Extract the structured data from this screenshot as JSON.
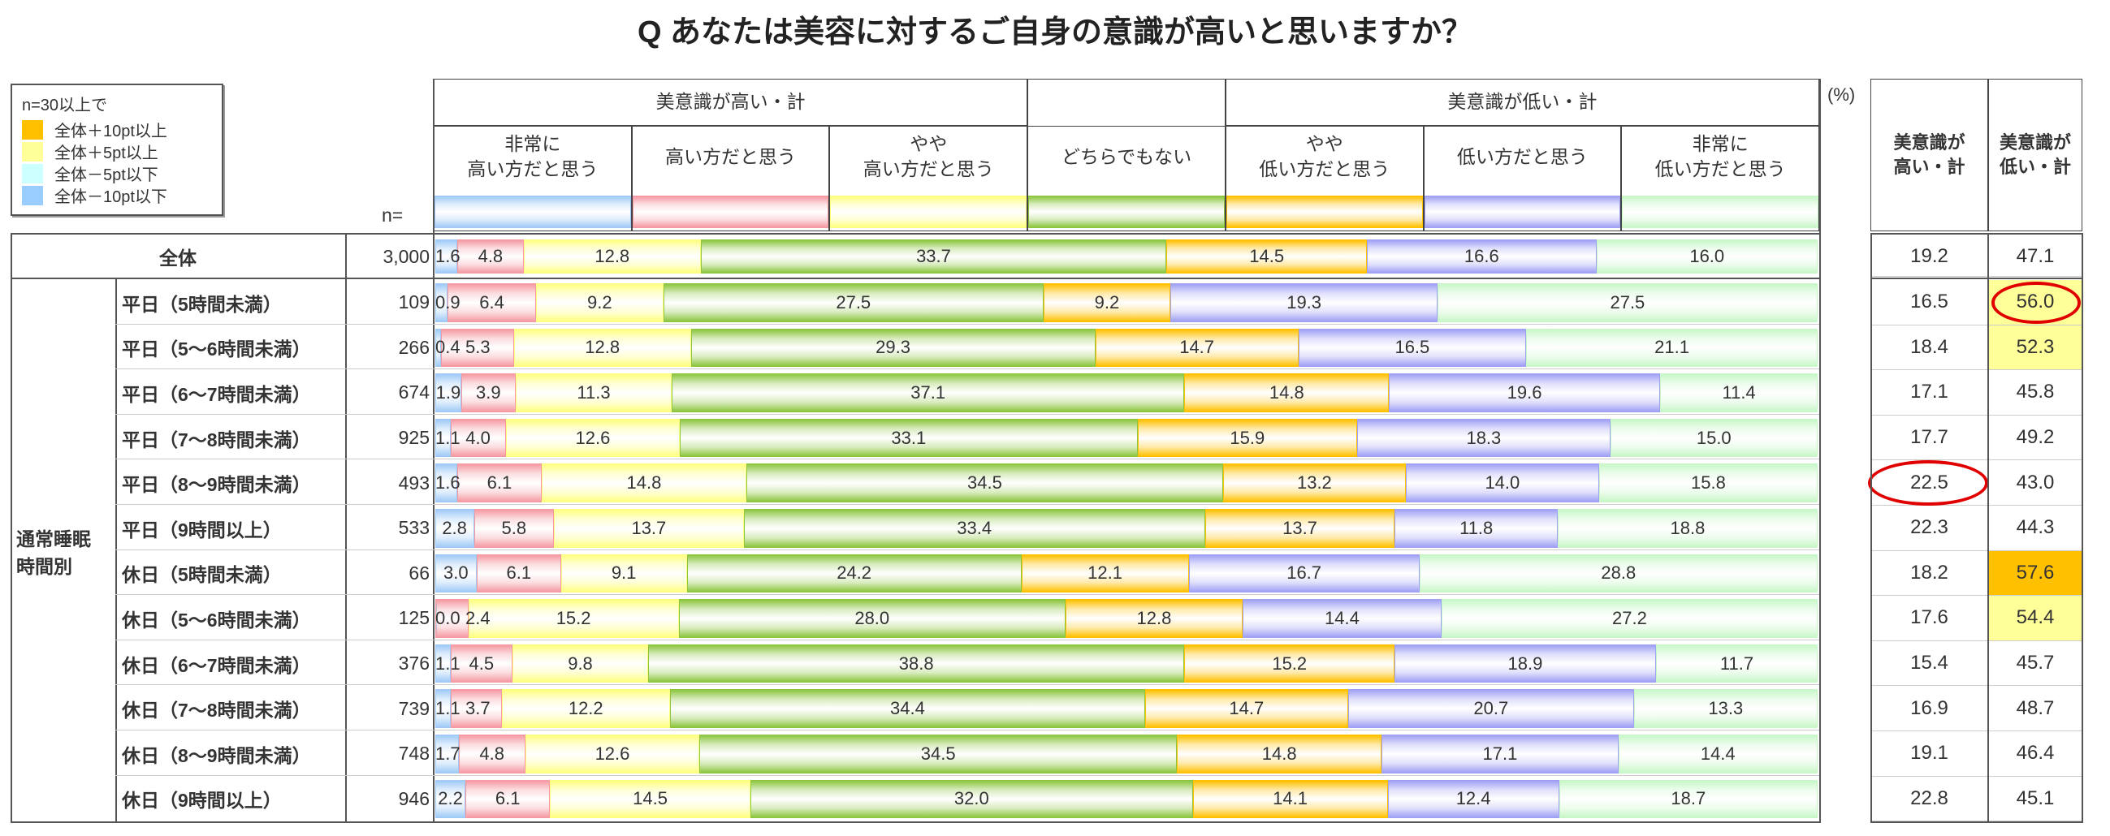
{
  "title": "Q あなたは美容に対するご自身の意識が高いと思いますか？",
  "legend": {
    "heading": "n=30以上で",
    "items": [
      {
        "label": "全体＋10pt以上",
        "color": "#ffc000"
      },
      {
        "label": "全体＋5pt以上",
        "color": "#ffff99"
      },
      {
        "label": "全体－5pt以下",
        "color": "#ccffff"
      },
      {
        "label": "全体－10pt以下",
        "color": "#99ccff"
      }
    ]
  },
  "n_label": "n=",
  "unit": "(%)",
  "group_headers": {
    "high": "美意識が高い・計",
    "low": "美意識が低い・計"
  },
  "total_headers": {
    "high": "美意識が\n高い・計",
    "low": "美意識が\n低い・計"
  },
  "side_group_label": {
    "line1": "通常睡眠",
    "line2": "時間別"
  },
  "chart_data": {
    "type": "bar",
    "orientation": "horizontal-stacked-100",
    "categories": [
      "非常に\n高い方だと思う",
      "高い方だと思う",
      "やや\n高い方だと思う",
      "どちらでもない",
      "やや\n低い方だと思う",
      "低い方だと思う",
      "非常に\n低い方だと思う"
    ],
    "category_colors": [
      "#9fcaf7",
      "#f59aa3",
      "#ffff80",
      "#8cc63f",
      "#ffc000",
      "#a0a0f5",
      "#c8f7c8"
    ],
    "rows": [
      {
        "label": "全体",
        "n": "3,000",
        "values": [
          1.6,
          4.8,
          12.8,
          33.7,
          14.5,
          16.6,
          16.0
        ],
        "high_total": "19.2",
        "low_total": "47.1",
        "low_highlight": "",
        "circle": ""
      },
      {
        "label": "平日（5時間未満）",
        "n": "109",
        "values": [
          0.9,
          6.4,
          9.2,
          27.5,
          9.2,
          19.3,
          27.5
        ],
        "high_total": "16.5",
        "low_total": "56.0",
        "low_highlight": "#ffff99",
        "circle": "low"
      },
      {
        "label": "平日（5～6時間未満）",
        "n": "266",
        "values": [
          0.4,
          5.3,
          12.8,
          29.3,
          14.7,
          16.5,
          21.1
        ],
        "high_total": "18.4",
        "low_total": "52.3",
        "low_highlight": "#ffff99",
        "circle": ""
      },
      {
        "label": "平日（6～7時間未満）",
        "n": "674",
        "values": [
          1.9,
          3.9,
          11.3,
          37.1,
          14.8,
          19.6,
          11.4
        ],
        "high_total": "17.1",
        "low_total": "45.8",
        "low_highlight": "",
        "circle": ""
      },
      {
        "label": "平日（7～8時間未満）",
        "n": "925",
        "values": [
          1.1,
          4.0,
          12.6,
          33.1,
          15.9,
          18.3,
          15.0
        ],
        "high_total": "17.7",
        "low_total": "49.2",
        "low_highlight": "",
        "circle": ""
      },
      {
        "label": "平日（8～9時間未満）",
        "n": "493",
        "values": [
          1.6,
          6.1,
          14.8,
          34.5,
          13.2,
          14.0,
          15.8
        ],
        "high_total": "22.5",
        "low_total": "43.0",
        "low_highlight": "",
        "circle": "high"
      },
      {
        "label": "平日（9時間以上）",
        "n": "533",
        "values": [
          2.8,
          5.8,
          13.7,
          33.4,
          13.7,
          11.8,
          18.8
        ],
        "high_total": "22.3",
        "low_total": "44.3",
        "low_highlight": "",
        "circle": ""
      },
      {
        "label": "休日（5時間未満）",
        "n": "66",
        "values": [
          3.0,
          6.1,
          9.1,
          24.2,
          12.1,
          16.7,
          28.8
        ],
        "high_total": "18.2",
        "low_total": "57.6",
        "low_highlight": "#ffc000",
        "circle": ""
      },
      {
        "label": "休日（5～6時間未満）",
        "n": "125",
        "values": [
          0.0,
          2.4,
          15.2,
          28.0,
          12.8,
          14.4,
          27.2
        ],
        "high_total": "17.6",
        "low_total": "54.4",
        "low_highlight": "#ffff99",
        "circle": ""
      },
      {
        "label": "休日（6～7時間未満）",
        "n": "376",
        "values": [
          1.1,
          4.5,
          9.8,
          38.8,
          15.2,
          18.9,
          11.7
        ],
        "high_total": "15.4",
        "low_total": "45.7",
        "low_highlight": "",
        "circle": ""
      },
      {
        "label": "休日（7～8時間未満）",
        "n": "739",
        "values": [
          1.1,
          3.7,
          12.2,
          34.4,
          14.7,
          20.7,
          13.3
        ],
        "high_total": "16.9",
        "low_total": "48.7",
        "low_highlight": "",
        "circle": ""
      },
      {
        "label": "休日（8～9時間未満）",
        "n": "748",
        "values": [
          1.7,
          4.8,
          12.6,
          34.5,
          14.8,
          17.1,
          14.4
        ],
        "high_total": "19.1",
        "low_total": "46.4",
        "low_highlight": "",
        "circle": ""
      },
      {
        "label": "休日（9時間以上）",
        "n": "946",
        "values": [
          2.2,
          6.1,
          14.5,
          32.0,
          14.1,
          12.4,
          18.7
        ],
        "high_total": "22.8",
        "low_total": "45.1",
        "low_highlight": "",
        "circle": ""
      }
    ]
  }
}
